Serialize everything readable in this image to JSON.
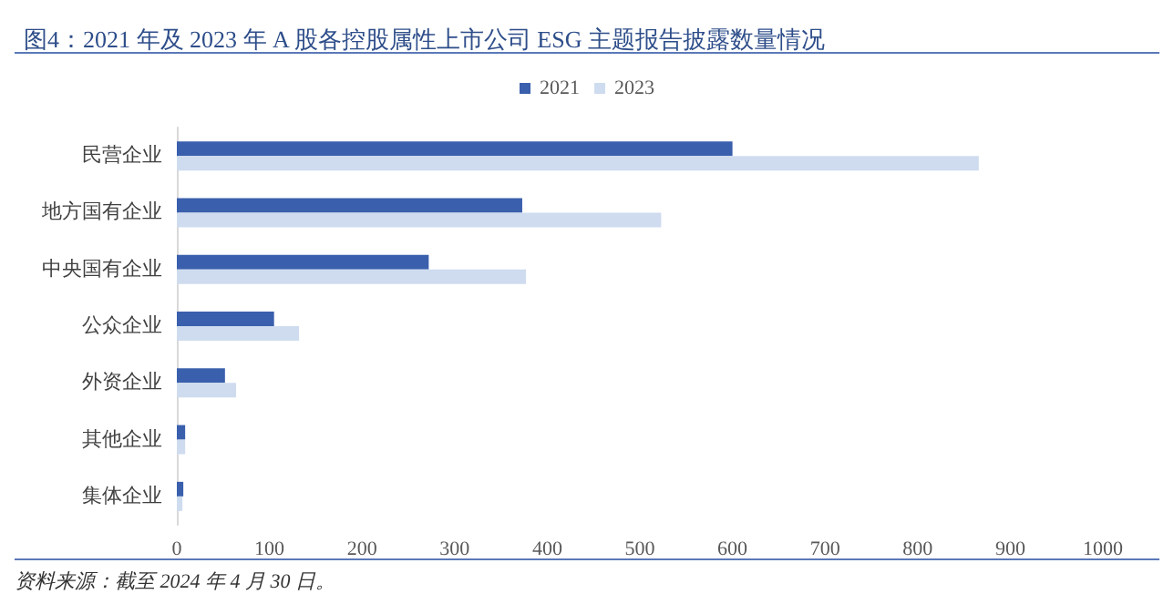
{
  "chart_data": {
    "type": "bar",
    "orientation": "horizontal",
    "title": "图4：2021 年及 2023 年 A 股各控股属性上市公司 ESG 主题报告披露数量情况",
    "categories": [
      "民营企业",
      "地方国有企业",
      "中央国有企业",
      "公众企业",
      "外资企业",
      "其他企业",
      "集体企业"
    ],
    "series": [
      {
        "name": "2021",
        "color": "#3a5fad",
        "values": [
          600,
          373,
          272,
          105,
          52,
          9,
          7
        ]
      },
      {
        "name": "2023",
        "color": "#cfdcef",
        "values": [
          866,
          523,
          377,
          132,
          64,
          9,
          6
        ]
      }
    ],
    "xlim": [
      0,
      1000
    ],
    "xticks": [
      0,
      100,
      200,
      300,
      400,
      500,
      600,
      700,
      800,
      900,
      1000
    ],
    "grid": false,
    "legend": "top",
    "annotations": [
      "资料来源：截至 2024 年 4 月 30 日。"
    ]
  }
}
